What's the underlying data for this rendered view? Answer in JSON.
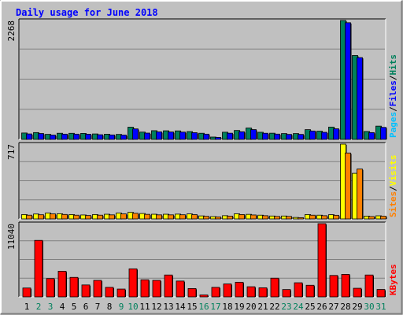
{
  "chart_data": {
    "type": "bar",
    "title": "Daily usage for June 2018",
    "categories": [
      "1",
      "2",
      "3",
      "4",
      "5",
      "6",
      "7",
      "8",
      "9",
      "10",
      "11",
      "12",
      "13",
      "14",
      "15",
      "16",
      "17",
      "18",
      "19",
      "20",
      "21",
      "22",
      "23",
      "24",
      "25",
      "26",
      "27",
      "28",
      "29",
      "30",
      "31"
    ],
    "weekend_days": [
      "2",
      "3",
      "9",
      "10",
      "16",
      "17",
      "23",
      "24",
      "30",
      "31"
    ],
    "panels": [
      {
        "id": "pages-files-hits",
        "ymax": 2268,
        "ymax_label": "2268",
        "right_label": [
          "Pages",
          "Files",
          "Hits"
        ],
        "series": [
          {
            "name": "Hits",
            "values": [
              122,
              130,
              96,
              117,
              116,
              114,
              104,
              99,
              95,
              233,
              139,
              166,
              164,
              162,
              149,
              117,
              45,
              137,
              170,
              217,
              136,
              118,
              111,
              111,
              186,
              157,
              235,
              2268,
              1600,
              151,
              253
            ]
          },
          {
            "name": "Files",
            "values": [
              104,
              112,
              82,
              100,
              100,
              98,
              89,
              85,
              82,
              200,
              120,
              143,
              141,
              139,
              128,
              100,
              39,
              118,
              146,
              187,
              117,
              101,
              95,
              95,
              160,
              135,
              202,
              2225,
              1560,
              130,
              229
            ]
          }
        ]
      },
      {
        "id": "sites-visits",
        "ymax": 717,
        "ymax_label": "717",
        "right_label": [
          "Sites",
          "Visits"
        ],
        "series": [
          {
            "name": "Visits",
            "values": [
              42,
              47,
              56,
              50,
              42,
              38,
              42,
              45,
              56,
              63,
              52,
              45,
              45,
              46,
              48,
              29,
              22,
              31,
              49,
              44,
              36,
              28,
              28,
              14,
              42,
              36,
              41,
              717,
              437,
              27,
              30
            ]
          },
          {
            "name": "Sites",
            "values": [
              36,
              40,
              48,
              43,
              36,
              33,
              36,
              39,
              48,
              54,
              44,
              39,
              39,
              40,
              41,
              25,
              19,
              27,
              42,
              38,
              31,
              24,
              24,
              12,
              36,
              31,
              35,
              632,
              478,
              23,
              26
            ]
          }
        ]
      },
      {
        "id": "kbytes",
        "ymax": 11040,
        "ymax_label": "11040",
        "right_label": [
          "KBytes"
        ],
        "series": [
          {
            "name": "KBytes",
            "values": [
              1340,
              8520,
              2760,
              3870,
              2940,
              1800,
              2490,
              1440,
              1180,
              4230,
              2580,
              2490,
              3300,
              2390,
              1260,
              290,
              1440,
              1950,
              2210,
              1530,
              1370,
              2820,
              1110,
              2130,
              1750,
              11040,
              3230,
              3390,
              1300,
              3300,
              1120
            ]
          }
        ]
      }
    ]
  },
  "colors": {
    "background": "#c0c0c0",
    "hits": "#00805c",
    "files": "#0000ff",
    "pages": "#00c0ff",
    "visits": "#ffff00",
    "sites": "#ff8000",
    "kbytes": "#ff0000",
    "title": "#0000ff",
    "weekday": "#000000",
    "weekend": "#00805c"
  }
}
